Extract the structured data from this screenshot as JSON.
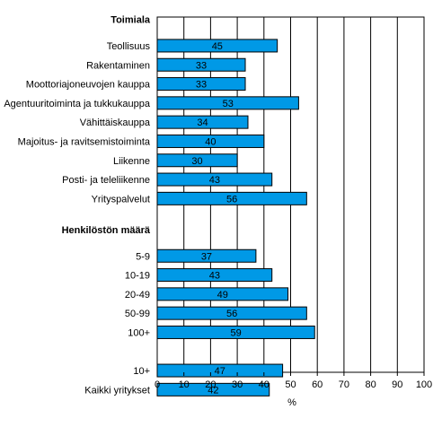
{
  "chart_data": {
    "type": "bar",
    "orientation": "horizontal",
    "groups": [
      {
        "heading": "Toimiala",
        "categories": [
          "Teollisuus",
          "Rakentaminen",
          "Moottoriajoneuvojen kauppa",
          "Agentuuritoiminta ja tukkukauppa",
          "Vähittäiskauppa",
          "Majoitus- ja ravitsemistoiminta",
          "Liikenne",
          "Posti- ja teleliikenne",
          "Yrityspalvelut"
        ],
        "values": [
          45,
          33,
          33,
          53,
          34,
          40,
          30,
          43,
          56
        ]
      },
      {
        "heading": "Henkilöstön määrä",
        "categories": [
          "5-9",
          "10-19",
          "20-49",
          "50-99",
          "100+"
        ],
        "values": [
          37,
          43,
          49,
          56,
          59
        ]
      },
      {
        "heading": "",
        "categories": [
          "10+",
          "Kaikki yritykset"
        ],
        "values": [
          47,
          42
        ]
      }
    ],
    "xlabel": "%",
    "xlim": [
      0,
      100
    ],
    "xticks": [
      0,
      10,
      20,
      30,
      40,
      50,
      60,
      70,
      80,
      90,
      100
    ],
    "data_labels": true,
    "grid": "vertical",
    "legend": "none",
    "bar_color": "#0099e6"
  }
}
